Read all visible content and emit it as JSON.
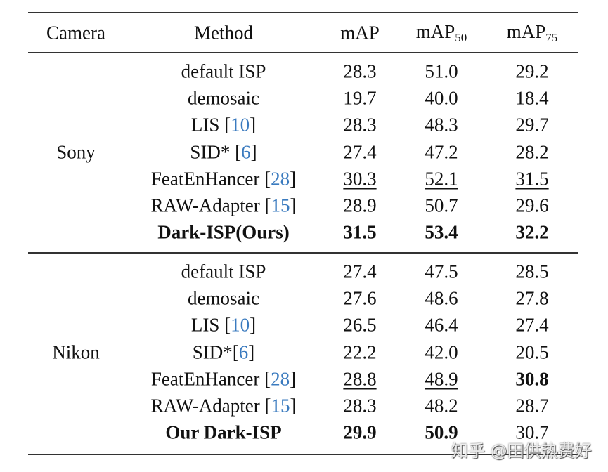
{
  "header": {
    "camera": "Camera",
    "method": "Method",
    "map": "mAP",
    "map50_base": "mAP",
    "map50_sub": "50",
    "map75_base": "mAP",
    "map75_sub": "75"
  },
  "groups": [
    {
      "camera": "Sony",
      "rows": [
        {
          "method": "default ISP",
          "cite": "",
          "map": "28.3",
          "map50": "51.0",
          "map75": "29.2"
        },
        {
          "method": "demosaic",
          "cite": "",
          "map": "19.7",
          "map50": "40.0",
          "map75": "18.4"
        },
        {
          "method": "LIS ",
          "cite": "10",
          "map": "28.3",
          "map50": "48.3",
          "map75": "29.7"
        },
        {
          "method": "SID* ",
          "cite": "6",
          "map": "27.4",
          "map50": "47.2",
          "map75": "28.2"
        },
        {
          "method": "FeatEnHancer ",
          "cite": "28",
          "map": "30.3",
          "map50": "52.1",
          "map75": "31.5",
          "underline": [
            "map",
            "map50",
            "map75"
          ]
        },
        {
          "method": "RAW-Adapter ",
          "cite": "15",
          "map": "28.9",
          "map50": "50.7",
          "map75": "29.6"
        },
        {
          "method": "Dark-ISP(Ours)",
          "cite": "",
          "map": "31.5",
          "map50": "53.4",
          "map75": "32.2",
          "bold": [
            "method",
            "map",
            "map50",
            "map75"
          ]
        }
      ]
    },
    {
      "camera": "Nikon",
      "rows": [
        {
          "method": "default ISP",
          "cite": "",
          "map": "27.4",
          "map50": "47.5",
          "map75": "28.5"
        },
        {
          "method": "demosaic",
          "cite": "",
          "map": "27.6",
          "map50": "48.6",
          "map75": "27.8"
        },
        {
          "method": "LIS ",
          "cite": "10",
          "map": "26.5",
          "map50": "46.4",
          "map75": "27.4"
        },
        {
          "method": "SID*",
          "cite": "6",
          "map": "22.2",
          "map50": "42.0",
          "map75": "20.5"
        },
        {
          "method": "FeatEnHancer ",
          "cite": "28",
          "map": "28.8",
          "map50": "48.9",
          "map75": "30.8",
          "underline": [
            "map",
            "map50"
          ],
          "bold": [
            "map75"
          ]
        },
        {
          "method": "RAW-Adapter ",
          "cite": "15",
          "map": "28.3",
          "map50": "48.2",
          "map75": "28.7"
        },
        {
          "method": "Our Dark-ISP",
          "cite": "",
          "map": "29.9",
          "map50": "50.9",
          "map75": "30.7",
          "bold": [
            "method",
            "map",
            "map50"
          ]
        }
      ]
    }
  ],
  "watermark": "知乎 @田供热费好"
}
